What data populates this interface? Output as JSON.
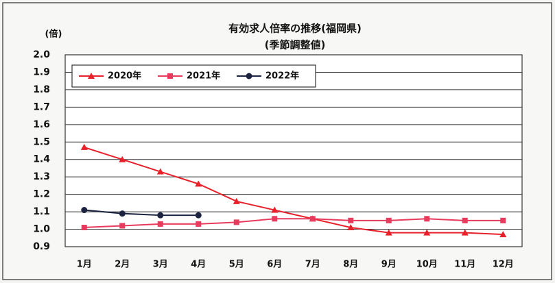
{
  "chart_data": {
    "type": "line",
    "title": "有効求人倍率の推移(福岡県)",
    "subtitle": "(季節調整値)",
    "y_label": "(倍)",
    "categories": [
      "1月",
      "2月",
      "3月",
      "4月",
      "5月",
      "6月",
      "7月",
      "8月",
      "9月",
      "10月",
      "11月",
      "12月"
    ],
    "series": [
      {
        "name": "2020年",
        "color": "#e8202a",
        "marker": "triangle",
        "values": [
          1.47,
          1.4,
          1.33,
          1.26,
          1.16,
          1.11,
          1.06,
          1.01,
          0.98,
          0.98,
          0.98,
          0.97
        ]
      },
      {
        "name": "2021年",
        "color": "#e83a5c",
        "marker": "square",
        "values": [
          1.01,
          1.02,
          1.03,
          1.03,
          1.04,
          1.06,
          1.06,
          1.05,
          1.05,
          1.06,
          1.05,
          1.05
        ]
      },
      {
        "name": "2022年",
        "color": "#1b2340",
        "marker": "circle",
        "values": [
          1.11,
          1.09,
          1.08,
          1.08,
          null,
          null,
          null,
          null,
          null,
          null,
          null,
          null
        ]
      }
    ],
    "ylim": [
      0.9,
      2.0
    ],
    "yticks": [
      0.9,
      {
        "value": 1.0,
        "label": "1.0"
      },
      1.1,
      1.2,
      1.3,
      1.4,
      1.5,
      1.6,
      1.7,
      1.8,
      1.9,
      {
        "value": 2.0,
        "label": "2.0"
      }
    ],
    "grid": true,
    "legend": "top-left"
  }
}
